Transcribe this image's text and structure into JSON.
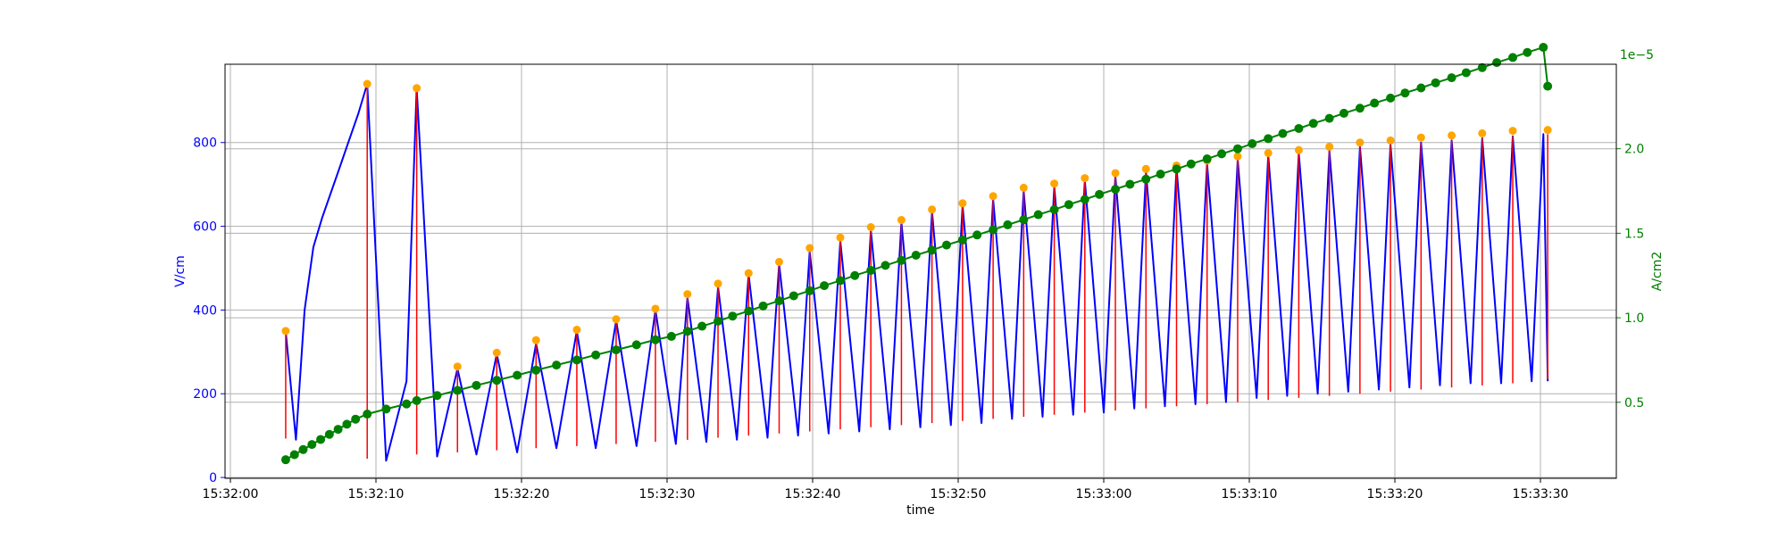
{
  "chart_data": {
    "type": "line",
    "xlabel": "time",
    "x_ticks": [
      "15:32:00",
      "15:32:10",
      "15:32:20",
      "15:32:30",
      "15:32:40",
      "15:32:50",
      "15:33:00",
      "15:33:10",
      "15:33:20",
      "15:33:30"
    ],
    "y_left": {
      "label": "V/cm",
      "ticks": [
        0,
        200,
        400,
        600,
        800
      ],
      "ylim": [
        -2,
        987
      ],
      "color": "#0000ff"
    },
    "y_right": {
      "label": "A/cm2",
      "offset_text": "1e−5",
      "ticks": [
        0.5,
        1.0,
        1.5,
        2.0
      ],
      "tick_labels": [
        "0.5",
        "1.0",
        "1.5",
        "2.0"
      ],
      "ylim": [
        0.05,
        2.5
      ],
      "color": "#008000"
    },
    "grid": true,
    "series": [
      {
        "kind": "line",
        "color": "#0000ff",
        "axis": "left",
        "x": [
          "15:32:03.8",
          "15:32:04.5",
          "15:32:05.1",
          "15:32:05.7",
          "15:32:06.3",
          "15:32:06.9",
          "15:32:07.5",
          "15:32:08.1",
          "15:32:08.8",
          "15:32:09.4",
          "15:32:10.7",
          "15:32:12.1",
          "15:32:12.8",
          "15:32:14.2",
          "15:32:15.6",
          "15:32:16.9",
          "15:32:18.3",
          "15:32:19.7",
          "15:32:21.0",
          "15:32:22.4",
          "15:32:23.8",
          "15:32:25.1",
          "15:32:26.5",
          "15:32:27.9",
          "15:32:29.2",
          "15:32:30.6",
          "15:32:31.4",
          "15:32:32.7",
          "15:32:33.5",
          "15:32:34.8",
          "15:32:35.6",
          "15:32:36.9",
          "15:32:37.7",
          "15:32:39.0",
          "15:32:39.8",
          "15:32:41.1",
          "15:32:41.9",
          "15:32:43.2",
          "15:32:44.0",
          "15:32:45.3",
          "15:32:46.1",
          "15:32:47.4",
          "15:32:48.2",
          "15:32:49.5",
          "15:32:50.3",
          "15:32:51.6",
          "15:32:52.4",
          "15:32:53.7",
          "15:32:54.5",
          "15:32:55.8",
          "15:32:56.6",
          "15:32:57.9",
          "15:32:58.7",
          "15:33:00.0",
          "15:33:00.8",
          "15:33:02.1",
          "15:33:02.9",
          "15:33:04.2",
          "15:33:05.0",
          "15:33:06.3",
          "15:33:07.1",
          "15:33:08.4",
          "15:33:09.2",
          "15:33:10.5",
          "15:33:11.3",
          "15:33:12.6",
          "15:33:13.4",
          "15:33:14.7",
          "15:33:15.5",
          "15:33:16.8",
          "15:33:17.6",
          "15:33:18.9",
          "15:33:19.7",
          "15:33:21.0",
          "15:33:21.8",
          "15:33:23.1",
          "15:33:23.9",
          "15:33:25.2",
          "15:33:26.0",
          "15:33:27.3",
          "15:33:28.1",
          "15:33:29.4",
          "15:33:30.2",
          "15:33:30.5"
        ],
        "y": [
          350,
          90,
          400,
          550,
          620,
          680,
          740,
          800,
          870,
          940,
          40,
          230,
          930,
          50,
          260,
          55,
          295,
          60,
          320,
          70,
          350,
          70,
          375,
          75,
          400,
          80,
          430,
          85,
          455,
          90,
          485,
          95,
          510,
          100,
          540,
          105,
          565,
          110,
          590,
          115,
          610,
          120,
          635,
          125,
          650,
          130,
          665,
          140,
          685,
          145,
          695,
          150,
          710,
          155,
          720,
          165,
          730,
          170,
          740,
          175,
          750,
          180,
          760,
          190,
          770,
          195,
          775,
          200,
          780,
          205,
          790,
          210,
          795,
          215,
          800,
          220,
          805,
          225,
          810,
          225,
          815,
          230,
          820,
          230
        ]
      },
      {
        "kind": "vlines",
        "color": "#ff0000",
        "axis": "left",
        "x": [
          "15:32:03.8",
          "15:32:09.4",
          "15:32:12.8",
          "15:32:15.6",
          "15:32:18.3",
          "15:32:21.0",
          "15:32:23.8",
          "15:32:26.5",
          "15:32:29.2",
          "15:32:31.4",
          "15:32:33.5",
          "15:32:35.6",
          "15:32:37.7",
          "15:32:39.8",
          "15:32:41.9",
          "15:32:44.0",
          "15:32:46.1",
          "15:32:48.2",
          "15:32:50.3",
          "15:32:52.4",
          "15:32:54.5",
          "15:32:56.6",
          "15:32:58.7",
          "15:33:00.8",
          "15:33:02.9",
          "15:33:05.0",
          "15:33:07.1",
          "15:33:09.2",
          "15:33:11.3",
          "15:33:13.4",
          "15:33:15.5",
          "15:33:17.6",
          "15:33:19.7",
          "15:33:21.8",
          "15:33:23.9",
          "15:33:26.0",
          "15:33:28.1",
          "15:33:30.5"
        ],
        "ymin": [
          93,
          45,
          55,
          60,
          65,
          70,
          75,
          80,
          85,
          90,
          95,
          100,
          105,
          110,
          115,
          120,
          125,
          130,
          135,
          140,
          145,
          150,
          155,
          160,
          165,
          170,
          175,
          180,
          185,
          190,
          195,
          200,
          205,
          210,
          215,
          220,
          225,
          235
        ],
        "ymax": [
          350,
          940,
          930,
          260,
          295,
          320,
          350,
          375,
          400,
          430,
          455,
          485,
          510,
          540,
          565,
          590,
          610,
          635,
          650,
          665,
          685,
          695,
          710,
          720,
          730,
          740,
          750,
          760,
          770,
          775,
          780,
          790,
          795,
          800,
          805,
          810,
          815,
          820
        ]
      },
      {
        "kind": "scatter",
        "color": "#ffa500",
        "axis": "left",
        "x": [
          "15:32:03.8",
          "15:32:09.4",
          "15:32:12.8",
          "15:32:15.6",
          "15:32:18.3",
          "15:32:21.0",
          "15:32:23.8",
          "15:32:26.5",
          "15:32:29.2",
          "15:32:31.4",
          "15:32:33.5",
          "15:32:35.6",
          "15:32:37.7",
          "15:32:39.8",
          "15:32:41.9",
          "15:32:44.0",
          "15:32:46.1",
          "15:32:48.2",
          "15:32:50.3",
          "15:32:52.4",
          "15:32:54.5",
          "15:32:56.6",
          "15:32:58.7",
          "15:33:00.8",
          "15:33:02.9",
          "15:33:05.0",
          "15:33:07.1",
          "15:33:09.2",
          "15:33:11.3",
          "15:33:13.4",
          "15:33:15.5",
          "15:33:17.6",
          "15:33:19.7",
          "15:33:21.8",
          "15:33:23.9",
          "15:33:26.0",
          "15:33:28.1",
          "15:33:30.5"
        ],
        "y": [
          350,
          940,
          930,
          265,
          298,
          328,
          353,
          378,
          403,
          438,
          463,
          488,
          515,
          548,
          573,
          598,
          615,
          640,
          655,
          672,
          692,
          702,
          715,
          727,
          737,
          745,
          757,
          767,
          775,
          782,
          790,
          800,
          805,
          812,
          817,
          822,
          828,
          830
        ]
      },
      {
        "kind": "line+markers",
        "color": "#008000",
        "axis": "right",
        "x": [
          "15:32:03.8",
          "15:32:04.4",
          "15:32:05.0",
          "15:32:05.6",
          "15:32:06.2",
          "15:32:06.8",
          "15:32:07.4",
          "15:32:08.0",
          "15:32:08.6",
          "15:32:09.4",
          "15:32:10.7",
          "15:32:12.1",
          "15:32:12.8",
          "15:32:14.2",
          "15:32:15.6",
          "15:32:16.9",
          "15:32:18.3",
          "15:32:19.7",
          "15:32:21.0",
          "15:32:22.4",
          "15:32:23.8",
          "15:32:25.1",
          "15:32:26.5",
          "15:32:27.9",
          "15:32:29.2",
          "15:32:30.3",
          "15:32:31.4",
          "15:32:32.4",
          "15:32:33.5",
          "15:32:34.5",
          "15:32:35.6",
          "15:32:36.6",
          "15:32:37.7",
          "15:32:38.7",
          "15:32:39.8",
          "15:32:40.8",
          "15:32:41.9",
          "15:32:42.9",
          "15:32:44.0",
          "15:32:45.0",
          "15:32:46.1",
          "15:32:47.1",
          "15:32:48.2",
          "15:32:49.2",
          "15:32:50.3",
          "15:32:51.3",
          "15:32:52.4",
          "15:32:53.4",
          "15:32:54.5",
          "15:32:55.5",
          "15:32:56.6",
          "15:32:57.6",
          "15:32:58.7",
          "15:32:59.7",
          "15:33:00.8",
          "15:33:01.8",
          "15:33:02.9",
          "15:33:03.9",
          "15:33:05.0",
          "15:33:06.0",
          "15:33:07.1",
          "15:33:08.1",
          "15:33:09.2",
          "15:33:10.2",
          "15:33:11.3",
          "15:33:12.3",
          "15:33:13.4",
          "15:33:14.4",
          "15:33:15.5",
          "15:33:16.5",
          "15:33:17.6",
          "15:33:18.6",
          "15:33:19.7",
          "15:33:20.7",
          "15:33:21.8",
          "15:33:22.8",
          "15:33:23.9",
          "15:33:24.9",
          "15:33:26.0",
          "15:33:27.0",
          "15:33:28.1",
          "15:33:29.1",
          "15:33:30.2",
          "15:33:30.5"
        ],
        "y": [
          0.16,
          0.19,
          0.22,
          0.25,
          0.28,
          0.31,
          0.34,
          0.37,
          0.4,
          0.43,
          0.46,
          0.49,
          0.51,
          0.54,
          0.57,
          0.6,
          0.63,
          0.66,
          0.69,
          0.72,
          0.75,
          0.78,
          0.81,
          0.84,
          0.87,
          0.89,
          0.92,
          0.95,
          0.98,
          1.01,
          1.04,
          1.07,
          1.1,
          1.13,
          1.16,
          1.19,
          1.22,
          1.25,
          1.28,
          1.31,
          1.34,
          1.37,
          1.4,
          1.43,
          1.46,
          1.49,
          1.52,
          1.55,
          1.58,
          1.61,
          1.64,
          1.67,
          1.7,
          1.73,
          1.76,
          1.79,
          1.82,
          1.85,
          1.88,
          1.91,
          1.94,
          1.97,
          2.0,
          2.03,
          2.06,
          2.09,
          2.12,
          2.15,
          2.18,
          2.21,
          2.24,
          2.27,
          2.3,
          2.33,
          2.36,
          2.39,
          2.42,
          2.45,
          2.48,
          2.51,
          2.54,
          2.57,
          2.6,
          2.37
        ]
      }
    ]
  }
}
